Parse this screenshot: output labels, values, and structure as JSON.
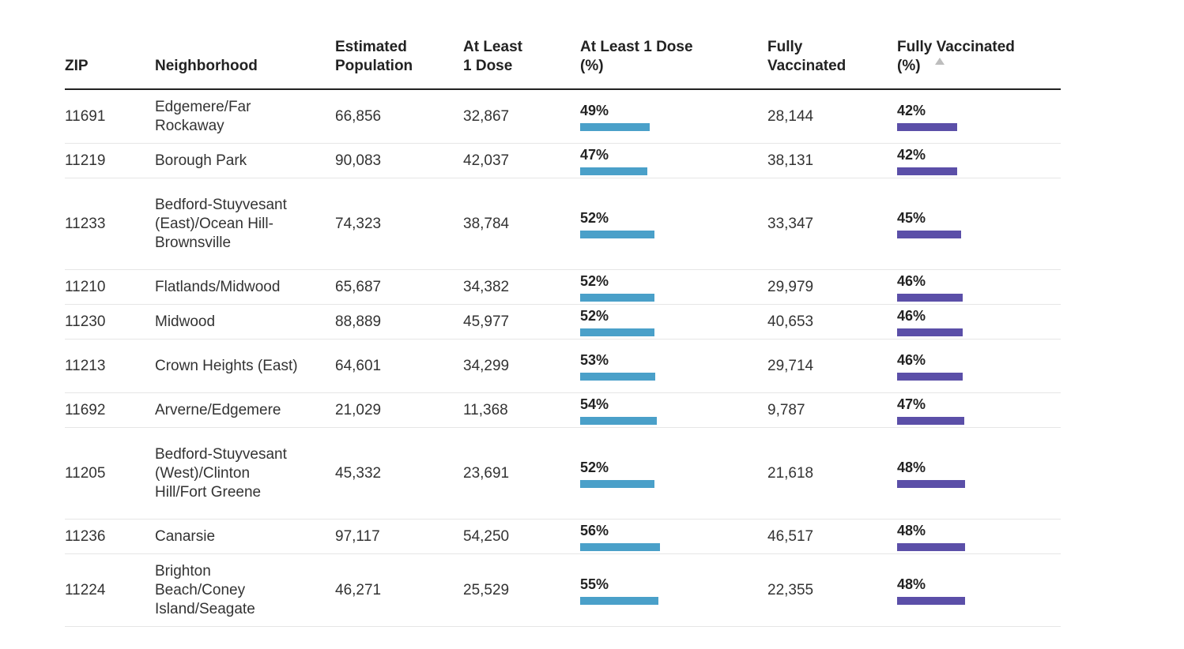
{
  "columns": {
    "zip": "ZIP",
    "neighborhood": "Neighborhood",
    "population": "Estimated\nPopulation",
    "dose1": "At Least\n1 Dose",
    "dose1_pct": "At Least 1 Dose\n(%)",
    "fully": "Fully\nVaccinated",
    "fully_pct_line1": "Fully Vaccinated",
    "fully_pct_line2": "(%)"
  },
  "colors": {
    "dose_bar": "#4aa0c9",
    "fully_bar": "#5b4fa8"
  },
  "rows": [
    {
      "zip": "11691",
      "neighborhood": "Edgemere/Far Rockaway",
      "population": "66,856",
      "dose1": "32,867",
      "dose1_pct": "49%",
      "dose1_val": 49,
      "fully": "28,144",
      "fully_pct": "42%",
      "fully_val": 42
    },
    {
      "zip": "11219",
      "neighborhood": "Borough Park",
      "population": "90,083",
      "dose1": "42,037",
      "dose1_pct": "47%",
      "dose1_val": 47,
      "fully": "38,131",
      "fully_pct": "42%",
      "fully_val": 42
    },
    {
      "zip": "11233",
      "neighborhood": "Bedford-Stuyvesant (East)/Ocean Hill-Brownsville",
      "population": "74,323",
      "dose1": "38,784",
      "dose1_pct": "52%",
      "dose1_val": 52,
      "fully": "33,347",
      "fully_pct": "45%",
      "fully_val": 45
    },
    {
      "zip": "11210",
      "neighborhood": "Flatlands/Midwood",
      "population": "65,687",
      "dose1": "34,382",
      "dose1_pct": "52%",
      "dose1_val": 52,
      "fully": "29,979",
      "fully_pct": "46%",
      "fully_val": 46
    },
    {
      "zip": "11230",
      "neighborhood": "Midwood",
      "population": "88,889",
      "dose1": "45,977",
      "dose1_pct": "52%",
      "dose1_val": 52,
      "fully": "40,653",
      "fully_pct": "46%",
      "fully_val": 46
    },
    {
      "zip": "11213",
      "neighborhood": "Crown Heights (East)",
      "population": "64,601",
      "dose1": "34,299",
      "dose1_pct": "53%",
      "dose1_val": 53,
      "fully": "29,714",
      "fully_pct": "46%",
      "fully_val": 46
    },
    {
      "zip": "11692",
      "neighborhood": "Arverne/Edgemere",
      "population": "21,029",
      "dose1": "11,368",
      "dose1_pct": "54%",
      "dose1_val": 54,
      "fully": "9,787",
      "fully_pct": "47%",
      "fully_val": 47
    },
    {
      "zip": "11205",
      "neighborhood": "Bedford-Stuyvesant (West)/Clinton Hill/Fort Greene",
      "population": "45,332",
      "dose1": "23,691",
      "dose1_pct": "52%",
      "dose1_val": 52,
      "fully": "21,618",
      "fully_pct": "48%",
      "fully_val": 48
    },
    {
      "zip": "11236",
      "neighborhood": "Canarsie",
      "population": "97,117",
      "dose1": "54,250",
      "dose1_pct": "56%",
      "dose1_val": 56,
      "fully": "46,517",
      "fully_pct": "48%",
      "fully_val": 48
    },
    {
      "zip": "11224",
      "neighborhood": "Brighton Beach/Coney Island/Seagate",
      "population": "46,271",
      "dose1": "25,529",
      "dose1_pct": "55%",
      "dose1_val": 55,
      "fully": "22,355",
      "fully_pct": "48%",
      "fully_val": 48
    }
  ]
}
